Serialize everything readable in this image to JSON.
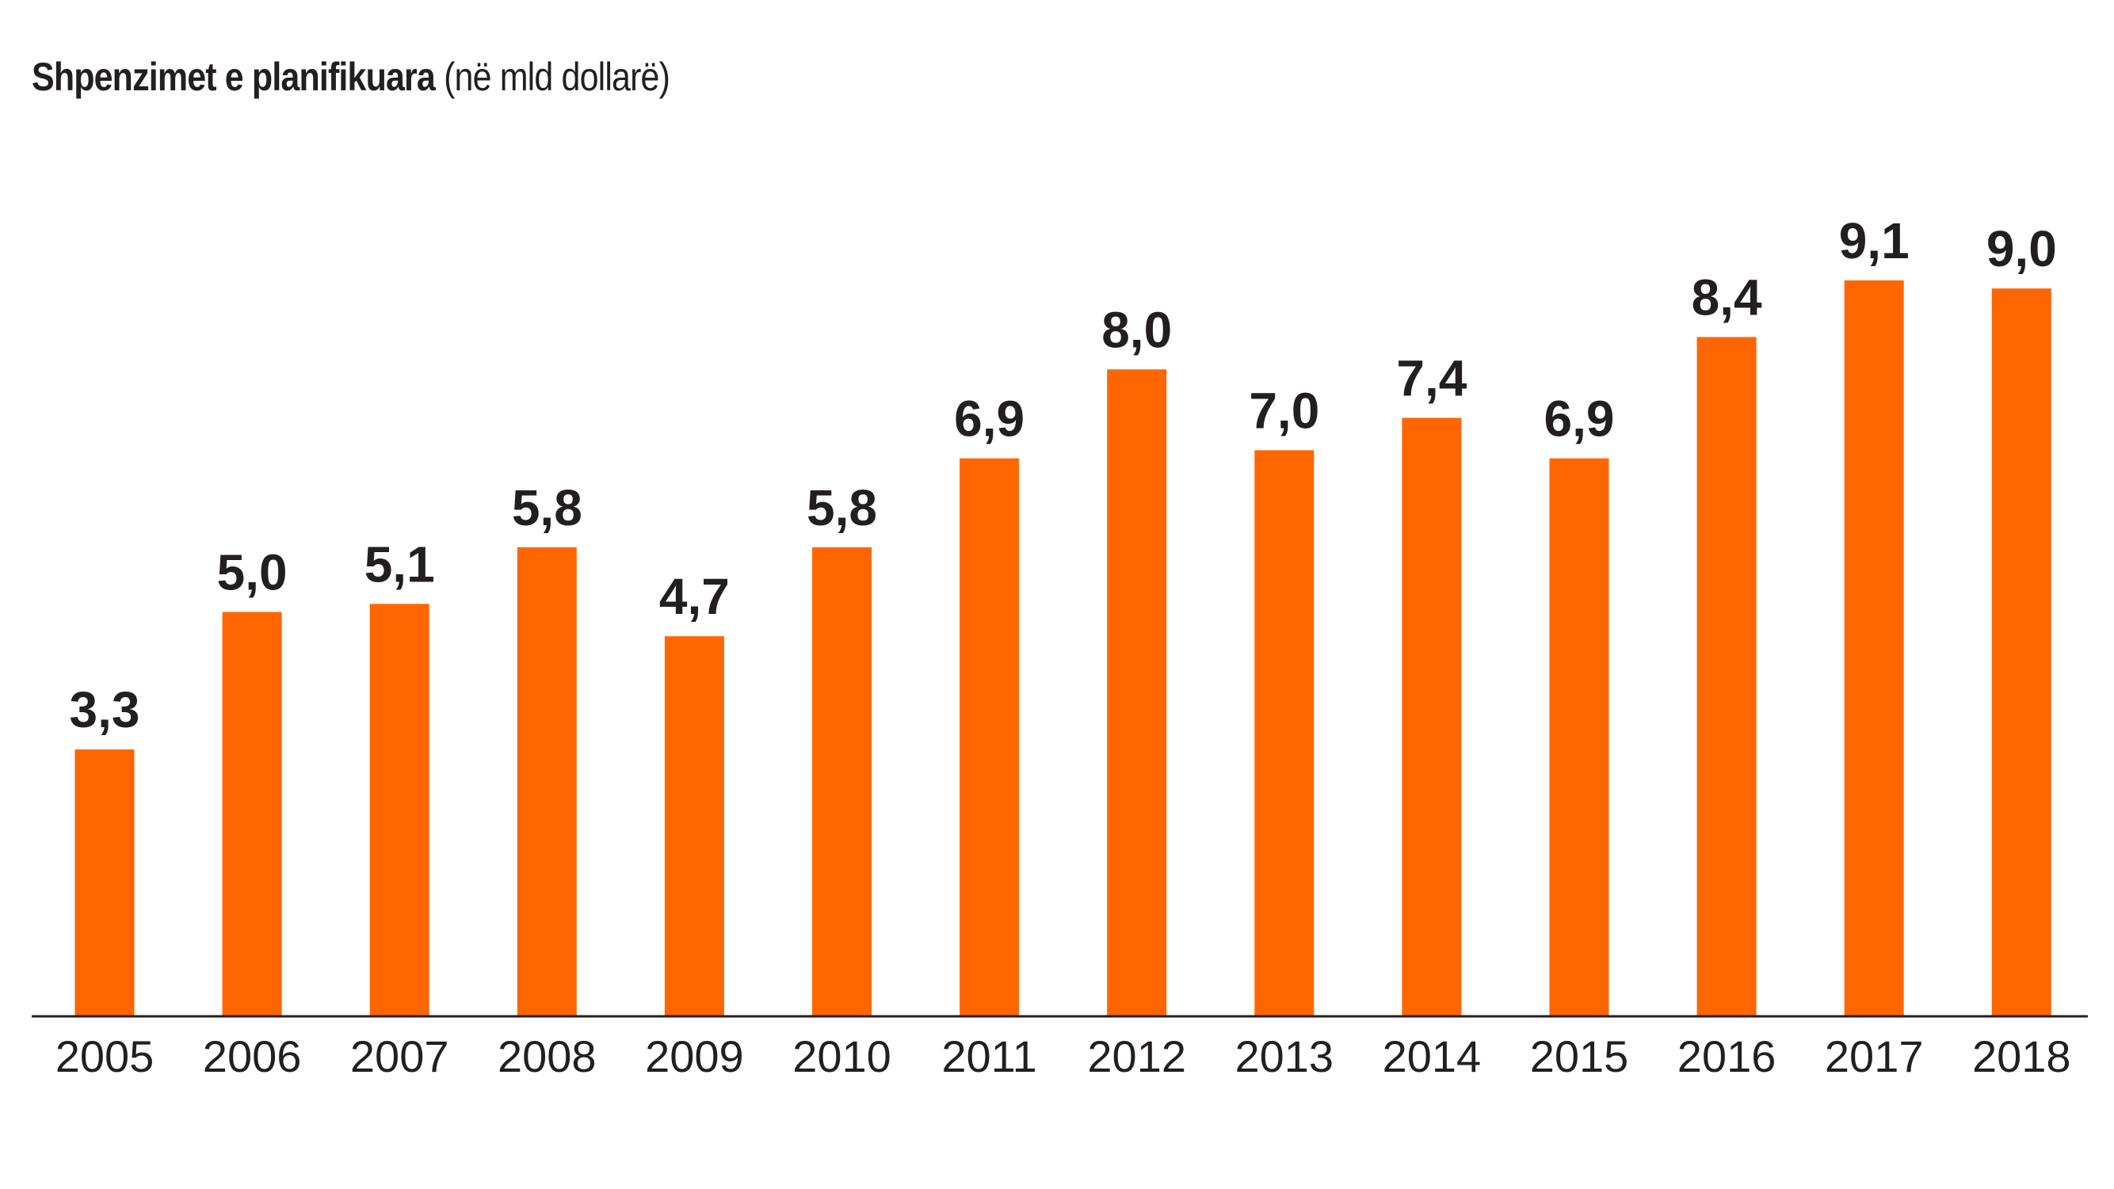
{
  "chart_data": {
    "type": "bar",
    "title": "Shpenzimet e planifikuara",
    "subtitle": "(në mld dollarë)",
    "categories": [
      "2005",
      "2006",
      "2007",
      "2008",
      "2009",
      "2010",
      "2011",
      "2012",
      "2013",
      "2014",
      "2015",
      "2016",
      "2017",
      "2018"
    ],
    "values": [
      3.3,
      5.0,
      5.1,
      5.8,
      4.7,
      5.8,
      6.9,
      8.0,
      7.0,
      7.4,
      6.9,
      8.4,
      9.1,
      9.0
    ],
    "value_labels": [
      "3,3",
      "5,0",
      "5,1",
      "5,8",
      "4,7",
      "5,8",
      "6,9",
      "8,0",
      "7,0",
      "7,4",
      "6,9",
      "8,4",
      "9,1",
      "9,0"
    ],
    "xlabel": "",
    "ylabel": "",
    "ylim": [
      0,
      9.1
    ],
    "grid": false,
    "legend": "none",
    "bar_color": "#ff6600",
    "text_color": "#231f20"
  }
}
